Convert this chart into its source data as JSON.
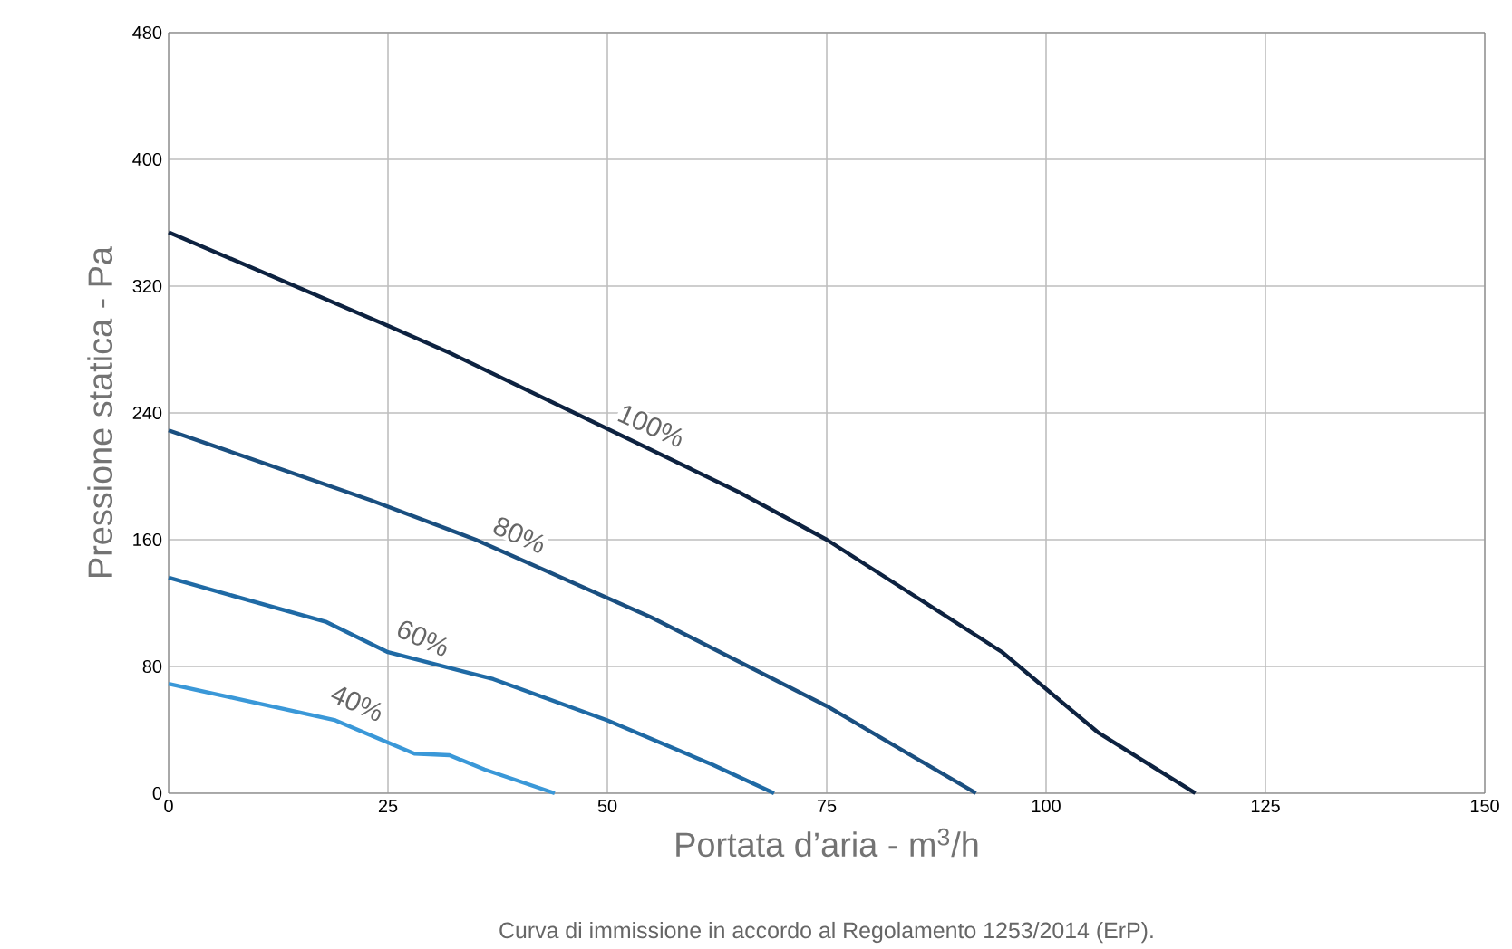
{
  "chart_data": {
    "type": "line",
    "xlabel": "Portata d’aria - m$^{3}$/h",
    "ylabel": "Pressione statica - Pa",
    "xlim": [
      0,
      150
    ],
    "xticks": [
      0,
      25,
      50,
      75,
      100,
      125,
      150
    ],
    "ylim": [
      0,
      480
    ],
    "yticks": [
      0,
      80,
      160,
      240,
      320,
      400,
      480
    ],
    "grid": true,
    "marker": "none",
    "line_style": "solid",
    "series": [
      {
        "color": "#0d2240",
        "x": [
          0,
          25,
          32,
          50,
          65,
          75,
          95,
          106,
          117
        ],
        "values": [
          354,
          295,
          278,
          230,
          190,
          160,
          89,
          38,
          0
        ]
      },
      {
        "color": "#1a4f80",
        "x": [
          0,
          23,
          35,
          55,
          75,
          92
        ],
        "values": [
          229,
          185,
          160,
          111,
          55,
          0
        ]
      },
      {
        "color": "#1f6aa5",
        "x": [
          0,
          18,
          25,
          37,
          50,
          62,
          69
        ],
        "values": [
          136,
          108,
          89,
          72,
          46,
          18,
          0
        ]
      },
      {
        "color": "#3a98d8",
        "x": [
          0,
          19,
          25,
          28,
          32,
          36,
          44
        ],
        "values": [
          69,
          46,
          32,
          25,
          24,
          15,
          0
        ]
      }
    ],
    "annotations": [
      {
        "text": "100%",
        "x": 55,
        "y": 232
      },
      {
        "text": "80%",
        "x": 40,
        "y": 163
      },
      {
        "text": "60%",
        "x": 29,
        "y": 98
      },
      {
        "text": "40%",
        "x": 21.5,
        "y": 57
      },
      "Curva di immissione in accordo al Regolamento 1253/2014 (ErP)."
    ]
  }
}
